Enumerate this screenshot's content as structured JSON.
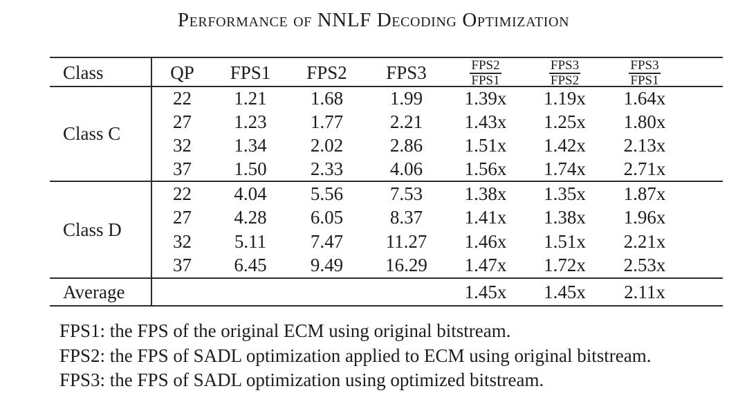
{
  "title": "Performance of NNLF Decoding Optimization",
  "table": {
    "headers": {
      "class": "Class",
      "qp": "QP",
      "fps1": "FPS1",
      "fps2": "FPS2",
      "fps3": "FPS3",
      "ratios": [
        {
          "num": "FPS2",
          "den": "FPS1"
        },
        {
          "num": "FPS3",
          "den": "FPS2"
        },
        {
          "num": "FPS3",
          "den": "FPS1"
        }
      ]
    },
    "sections": [
      {
        "label": "Class C",
        "rows": [
          {
            "qp": "22",
            "fps1": "1.21",
            "fps2": "1.68",
            "fps3": "1.99",
            "r1": "1.39x",
            "r2": "1.19x",
            "r3": "1.64x"
          },
          {
            "qp": "27",
            "fps1": "1.23",
            "fps2": "1.77",
            "fps3": "2.21",
            "r1": "1.43x",
            "r2": "1.25x",
            "r3": "1.80x"
          },
          {
            "qp": "32",
            "fps1": "1.34",
            "fps2": "2.02",
            "fps3": "2.86",
            "r1": "1.51x",
            "r2": "1.42x",
            "r3": "2.13x"
          },
          {
            "qp": "37",
            "fps1": "1.50",
            "fps2": "2.33",
            "fps3": "4.06",
            "r1": "1.56x",
            "r2": "1.74x",
            "r3": "2.71x"
          }
        ]
      },
      {
        "label": "Class D",
        "rows": [
          {
            "qp": "22",
            "fps1": "4.04",
            "fps2": "5.56",
            "fps3": "7.53",
            "r1": "1.38x",
            "r2": "1.35x",
            "r3": "1.87x"
          },
          {
            "qp": "27",
            "fps1": "4.28",
            "fps2": "6.05",
            "fps3": "8.37",
            "r1": "1.41x",
            "r2": "1.38x",
            "r3": "1.96x"
          },
          {
            "qp": "32",
            "fps1": "5.11",
            "fps2": "7.47",
            "fps3": "11.27",
            "r1": "1.46x",
            "r2": "1.51x",
            "r3": "2.21x"
          },
          {
            "qp": "37",
            "fps1": "6.45",
            "fps2": "9.49",
            "fps3": "16.29",
            "r1": "1.47x",
            "r2": "1.72x",
            "r3": "2.53x"
          }
        ]
      }
    ],
    "average": {
      "label": "Average",
      "r1": "1.45x",
      "r2": "1.45x",
      "r3": "2.11x"
    }
  },
  "footnotes": [
    "FPS1: the FPS of the original ECM using original bitstream.",
    "FPS2: the FPS of SADL optimization applied to ECM using original bitstream.",
    "FPS3: the FPS of SADL optimization using optimized bitstream."
  ],
  "colors": {
    "text": "#1c1c1c",
    "rule": "#2a2a2a",
    "background": "#ffffff"
  }
}
